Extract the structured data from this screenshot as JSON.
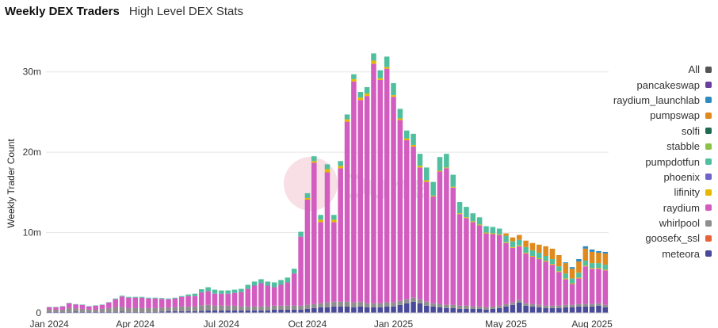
{
  "header": {
    "title": "Weekly DEX Traders",
    "subtitle": "High Level DEX Stats"
  },
  "watermark": "Dune",
  "chart_data": {
    "type": "bar",
    "stacked": true,
    "ylabel": "Weekly Trader Count",
    "ylim": [
      0,
      35
    ],
    "y_ticks": [
      {
        "value": 0,
        "label": "0"
      },
      {
        "value": 10,
        "label": "10m"
      },
      {
        "value": 20,
        "label": "20m"
      },
      {
        "value": 30,
        "label": "30m"
      }
    ],
    "x_ticks": [
      {
        "index": 0,
        "label": "Jan 2024"
      },
      {
        "index": 13,
        "label": "Apr 2024"
      },
      {
        "index": 26,
        "label": "Jul 2024"
      },
      {
        "index": 39,
        "label": "Oct 2024"
      },
      {
        "index": 52,
        "label": "Jan 2025"
      },
      {
        "index": 69,
        "label": "May 2025"
      },
      {
        "index": 82,
        "label": "Aug 2025"
      }
    ],
    "grid": true,
    "legend_position": "right",
    "series_order": [
      "meteora",
      "goosefx_ssl",
      "whirlpool",
      "raydium",
      "lifinity",
      "phoenix",
      "pumpdotfun",
      "stabble",
      "solfi",
      "pumpswap",
      "raydium_launchlab",
      "pancakeswap"
    ],
    "legend": [
      {
        "name": "All",
        "color": "#555555"
      },
      {
        "name": "pancakeswap",
        "color": "#6a3fa0"
      },
      {
        "name": "raydium_launchlab",
        "color": "#2e8bbf"
      },
      {
        "name": "pumpswap",
        "color": "#e08a1e"
      },
      {
        "name": "solfi",
        "color": "#1e6b4f"
      },
      {
        "name": "stabble",
        "color": "#8ac24a"
      },
      {
        "name": "pumpdotfun",
        "color": "#4fbf9f"
      },
      {
        "name": "phoenix",
        "color": "#6f64c8"
      },
      {
        "name": "lifinity",
        "color": "#e6b800"
      },
      {
        "name": "raydium",
        "color": "#d25cbf"
      },
      {
        "name": "whirlpool",
        "color": "#8f8f8f"
      },
      {
        "name": "goosefx_ssl",
        "color": "#e8623a"
      },
      {
        "name": "meteora",
        "color": "#4a4a9a"
      }
    ],
    "series": [
      {
        "name": "meteora",
        "color": "#4a4a9a",
        "values": [
          0.1,
          0.1,
          0.1,
          0.1,
          0.15,
          0.1,
          0.1,
          0.1,
          0.1,
          0.1,
          0.1,
          0.15,
          0.1,
          0.1,
          0.1,
          0.1,
          0.1,
          0.15,
          0.2,
          0.2,
          0.2,
          0.2,
          0.2,
          0.25,
          0.3,
          0.3,
          0.3,
          0.3,
          0.3,
          0.3,
          0.3,
          0.3,
          0.3,
          0.3,
          0.4,
          0.4,
          0.4,
          0.4,
          0.4,
          0.5,
          0.6,
          0.7,
          0.7,
          0.8,
          0.8,
          0.8,
          0.7,
          0.8,
          0.7,
          0.7,
          0.7,
          0.8,
          0.8,
          1.0,
          1.2,
          1.4,
          1.2,
          0.9,
          0.8,
          0.7,
          0.6,
          0.6,
          0.5,
          0.5,
          0.5,
          0.5,
          0.4,
          0.5,
          0.6,
          0.8,
          1.0,
          1.3,
          0.9,
          0.8,
          0.7,
          0.6,
          0.6,
          0.6,
          0.7,
          0.7,
          0.8,
          0.8,
          0.8,
          0.9,
          0.7
        ]
      },
      {
        "name": "goosefx_ssl",
        "color": "#e8623a",
        "values": [
          0,
          0,
          0,
          0,
          0,
          0,
          0,
          0,
          0,
          0,
          0,
          0,
          0,
          0,
          0,
          0,
          0,
          0,
          0,
          0,
          0,
          0,
          0,
          0,
          0,
          0,
          0,
          0,
          0,
          0,
          0,
          0,
          0,
          0,
          0,
          0,
          0,
          0,
          0,
          0,
          0,
          0,
          0,
          0,
          0,
          0,
          0,
          0,
          0,
          0,
          0,
          0,
          0,
          0,
          0,
          0,
          0,
          0,
          0,
          0,
          0,
          0,
          0,
          0,
          0,
          0,
          0,
          0,
          0,
          0,
          0,
          0,
          0,
          0,
          0,
          0,
          0,
          0,
          0,
          0,
          0,
          0,
          0,
          0,
          0
        ]
      },
      {
        "name": "whirlpool",
        "color": "#8f8f8f",
        "values": [
          0.3,
          0.3,
          0.3,
          0.5,
          0.4,
          0.4,
          0.3,
          0.3,
          0.4,
          0.5,
          0.6,
          0.6,
          0.5,
          0.5,
          0.5,
          0.5,
          0.5,
          0.5,
          0.5,
          0.5,
          0.6,
          0.6,
          0.6,
          0.7,
          0.7,
          0.6,
          0.6,
          0.6,
          0.6,
          0.5,
          0.5,
          0.5,
          0.5,
          0.5,
          0.5,
          0.5,
          0.5,
          0.5,
          0.5,
          0.5,
          0.5,
          0.5,
          0.6,
          0.6,
          0.6,
          0.6,
          0.6,
          0.6,
          0.5,
          0.5,
          0.5,
          0.5,
          0.5,
          0.5,
          0.5,
          0.5,
          0.5,
          0.5,
          0.4,
          0.4,
          0.4,
          0.4,
          0.4,
          0.4,
          0.3,
          0.3,
          0.3,
          0.3,
          0.3,
          0.3,
          0.3,
          0.3,
          0.3,
          0.3,
          0.3,
          0.3,
          0.3,
          0.3,
          0.3,
          0.3,
          0.3,
          0.3,
          0.3,
          0.3,
          0.3
        ]
      },
      {
        "name": "raydium",
        "color": "#d25cbf",
        "values": [
          0.3,
          0.3,
          0.4,
          0.6,
          0.5,
          0.5,
          0.4,
          0.5,
          0.5,
          0.7,
          1.0,
          1.3,
          1.3,
          1.3,
          1.3,
          1.2,
          1.2,
          1.1,
          1.0,
          1.1,
          1.2,
          1.3,
          1.3,
          1.6,
          1.7,
          1.5,
          1.5,
          1.5,
          1.6,
          1.8,
          2.2,
          2.6,
          2.9,
          2.6,
          2.3,
          2.6,
          2.9,
          4.0,
          8.6,
          13.1,
          17.6,
          10.1,
          16.2,
          9.9,
          16.6,
          22.4,
          27.5,
          25.1,
          25.8,
          29.8,
          27.8,
          29.1,
          25.6,
          22.5,
          19.8,
          18.8,
          16.4,
          14.9,
          13.3,
          16.5,
          17.0,
          14.6,
          11.4,
          10.9,
          10.5,
          10.1,
          9.2,
          9.0,
          8.8,
          7.6,
          6.8,
          6.7,
          6.2,
          5.9,
          5.7,
          5.5,
          5.1,
          4.2,
          3.2,
          2.6,
          3.2,
          4.7,
          4.4,
          4.3,
          4.3
        ]
      },
      {
        "name": "lifinity",
        "color": "#e6b800",
        "values": [
          0,
          0,
          0,
          0,
          0,
          0,
          0,
          0,
          0,
          0,
          0,
          0,
          0,
          0,
          0,
          0,
          0,
          0,
          0,
          0,
          0,
          0,
          0,
          0,
          0,
          0,
          0,
          0,
          0,
          0,
          0,
          0,
          0,
          0,
          0,
          0,
          0,
          0,
          0,
          0.2,
          0.2,
          0.3,
          0.4,
          0.3,
          0.3,
          0.3,
          0.3,
          0.3,
          0.3,
          0.4,
          0.2,
          0.2,
          0.2,
          0.2,
          0.2,
          0.2,
          0.2,
          0.2,
          0.1,
          0.1,
          0.1,
          0.1,
          0.1,
          0.1,
          0.1,
          0.1,
          0.1,
          0.1,
          0.1,
          0.1,
          0.1,
          0.1,
          0.1,
          0.1,
          0.1,
          0.1,
          0.1,
          0.1,
          0.1,
          0.1,
          0.1,
          0.1,
          0.1,
          0.1,
          0.1
        ]
      },
      {
        "name": "phoenix",
        "color": "#6f64c8",
        "values": [
          0,
          0,
          0,
          0,
          0,
          0,
          0,
          0,
          0,
          0,
          0,
          0,
          0,
          0,
          0,
          0,
          0,
          0,
          0,
          0,
          0,
          0,
          0,
          0,
          0,
          0,
          0,
          0,
          0,
          0,
          0,
          0,
          0,
          0,
          0,
          0,
          0,
          0,
          0,
          0,
          0,
          0,
          0,
          0,
          0,
          0,
          0,
          0,
          0,
          0,
          0,
          0,
          0,
          0,
          0,
          0,
          0,
          0,
          0,
          0,
          0,
          0,
          0,
          0,
          0,
          0,
          0,
          0,
          0,
          0,
          0,
          0,
          0,
          0,
          0,
          0,
          0,
          0,
          0,
          0,
          0,
          0,
          0,
          0,
          0
        ]
      },
      {
        "name": "pumpdotfun",
        "color": "#4fbf9f",
        "values": [
          0.05,
          0.05,
          0.05,
          0.05,
          0.05,
          0.05,
          0.05,
          0.05,
          0.05,
          0.05,
          0.1,
          0.1,
          0.1,
          0.1,
          0.1,
          0.1,
          0.1,
          0.1,
          0.1,
          0.1,
          0.1,
          0.2,
          0.3,
          0.4,
          0.5,
          0.5,
          0.4,
          0.4,
          0.4,
          0.4,
          0.5,
          0.5,
          0.5,
          0.5,
          0.6,
          0.6,
          0.6,
          0.6,
          0.6,
          0.6,
          0.6,
          0.6,
          0.6,
          0.6,
          0.6,
          0.6,
          0.6,
          0.7,
          0.8,
          0.9,
          1.0,
          1.3,
          1.5,
          1.2,
          1.0,
          1.4,
          1.5,
          1.6,
          1.7,
          1.7,
          1.7,
          1.5,
          1.4,
          1.3,
          1.0,
          0.9,
          0.8,
          0.8,
          0.7,
          0.8,
          0.7,
          0.7,
          0.7,
          0.7,
          0.7,
          0.6,
          0.6,
          0.6,
          0.6,
          0.6,
          0.6,
          0.6,
          0.6,
          0.6,
          0.6
        ]
      },
      {
        "name": "stabble",
        "color": "#8ac24a",
        "values": [
          0,
          0,
          0,
          0,
          0,
          0,
          0,
          0,
          0,
          0,
          0,
          0,
          0,
          0,
          0,
          0,
          0,
          0,
          0,
          0,
          0,
          0,
          0,
          0,
          0,
          0,
          0,
          0,
          0,
          0,
          0,
          0,
          0,
          0,
          0,
          0,
          0,
          0,
          0,
          0,
          0,
          0,
          0,
          0,
          0,
          0,
          0,
          0,
          0,
          0,
          0,
          0,
          0,
          0,
          0,
          0,
          0,
          0,
          0,
          0,
          0,
          0,
          0,
          0,
          0,
          0,
          0,
          0,
          0,
          0,
          0,
          0,
          0,
          0,
          0,
          0,
          0,
          0,
          0,
          0,
          0,
          0,
          0,
          0,
          0
        ]
      },
      {
        "name": "solfi",
        "color": "#1e6b4f",
        "values": [
          0,
          0,
          0,
          0,
          0,
          0,
          0,
          0,
          0,
          0,
          0,
          0,
          0,
          0,
          0,
          0,
          0,
          0,
          0,
          0,
          0,
          0,
          0,
          0,
          0,
          0,
          0,
          0,
          0,
          0,
          0,
          0,
          0,
          0,
          0,
          0,
          0,
          0,
          0,
          0,
          0,
          0,
          0,
          0,
          0,
          0,
          0,
          0,
          0,
          0,
          0,
          0,
          0,
          0,
          0,
          0,
          0,
          0,
          0,
          0,
          0,
          0,
          0,
          0,
          0,
          0,
          0,
          0,
          0,
          0,
          0,
          0,
          0,
          0,
          0,
          0,
          0,
          0,
          0,
          0,
          0,
          0,
          0,
          0,
          0
        ]
      },
      {
        "name": "pumpswap",
        "color": "#e08a1e",
        "values": [
          0,
          0,
          0,
          0,
          0,
          0,
          0,
          0,
          0,
          0,
          0,
          0,
          0,
          0,
          0,
          0,
          0,
          0,
          0,
          0,
          0,
          0,
          0,
          0,
          0,
          0,
          0,
          0,
          0,
          0,
          0,
          0,
          0,
          0,
          0,
          0,
          0,
          0,
          0,
          0,
          0,
          0,
          0,
          0,
          0,
          0,
          0,
          0,
          0,
          0,
          0,
          0,
          0,
          0,
          0,
          0,
          0,
          0,
          0,
          0,
          0,
          0,
          0,
          0,
          0,
          0,
          0,
          0,
          0,
          0.3,
          0.5,
          0.6,
          0.8,
          0.9,
          1.0,
          1.2,
          1.3,
          1.4,
          1.3,
          1.2,
          1.4,
          1.5,
          1.4,
          1.3,
          1.4
        ]
      },
      {
        "name": "raydium_launchlab",
        "color": "#2e8bbf",
        "values": [
          0,
          0,
          0,
          0,
          0,
          0,
          0,
          0,
          0,
          0,
          0,
          0,
          0,
          0,
          0,
          0,
          0,
          0,
          0,
          0,
          0,
          0,
          0,
          0,
          0,
          0,
          0,
          0,
          0,
          0,
          0,
          0,
          0,
          0,
          0,
          0,
          0,
          0,
          0,
          0,
          0,
          0,
          0,
          0,
          0,
          0,
          0,
          0,
          0,
          0,
          0,
          0,
          0,
          0,
          0,
          0,
          0,
          0,
          0,
          0,
          0,
          0,
          0,
          0,
          0,
          0,
          0,
          0,
          0,
          0,
          0,
          0,
          0,
          0,
          0,
          0,
          0,
          0,
          0.1,
          0.2,
          0.3,
          0.3,
          0.3,
          0.2,
          0.2
        ]
      },
      {
        "name": "pancakeswap",
        "color": "#6a3fa0",
        "values": [
          0,
          0,
          0,
          0,
          0,
          0,
          0,
          0,
          0,
          0,
          0,
          0,
          0,
          0,
          0,
          0,
          0,
          0,
          0,
          0,
          0,
          0,
          0,
          0,
          0,
          0,
          0,
          0,
          0,
          0,
          0,
          0,
          0,
          0,
          0,
          0,
          0,
          0,
          0,
          0,
          0,
          0,
          0,
          0,
          0,
          0,
          0,
          0,
          0,
          0,
          0,
          0,
          0,
          0,
          0,
          0,
          0,
          0,
          0,
          0,
          0,
          0,
          0,
          0,
          0,
          0,
          0,
          0,
          0,
          0,
          0,
          0,
          0,
          0,
          0,
          0,
          0,
          0,
          0,
          0,
          0,
          0,
          0,
          0,
          0
        ]
      }
    ]
  }
}
